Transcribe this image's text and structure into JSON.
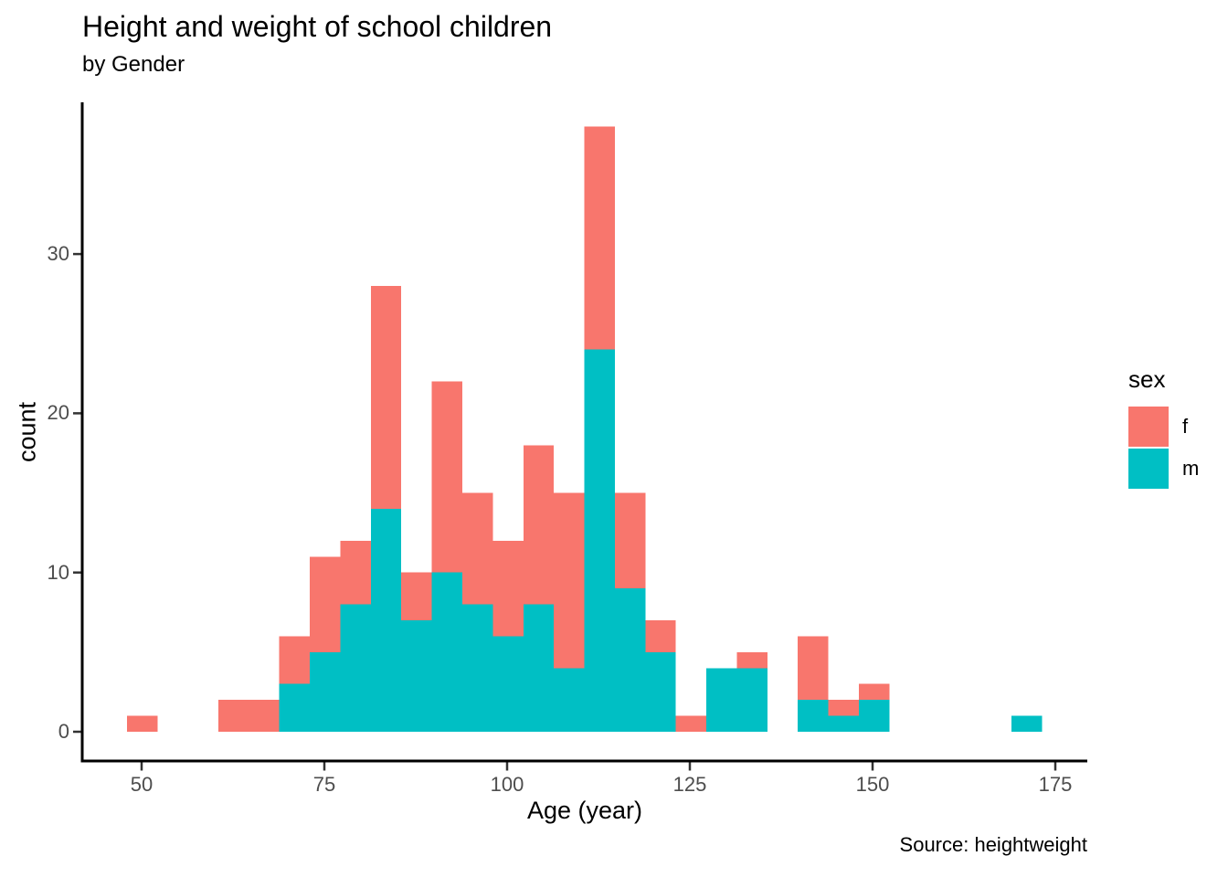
{
  "chart_data": {
    "type": "bar",
    "variant": "stacked-histogram",
    "title": "Height and weight of school children",
    "subtitle": "by Gender",
    "xlabel": "Age (year)",
    "ylabel": "count",
    "caption": "Source: heightweight",
    "grid": false,
    "axis_color": "#000000",
    "tick_label_color": "#4d4d4d",
    "legend": {
      "title": "sex",
      "position": "right",
      "entries": [
        {
          "label": "f",
          "color": "#F8766D"
        },
        {
          "label": "m",
          "color": "#00BFC4"
        }
      ]
    },
    "x_ticks": [
      50,
      75,
      100,
      125,
      150,
      175
    ],
    "y_ticks": [
      0,
      10,
      20,
      30
    ],
    "xlim": [
      42,
      179.4
    ],
    "ylim": [
      -1.9,
      39.9
    ],
    "binwidth": 4.17,
    "stack_order_bottom_to_top": [
      "m",
      "f"
    ],
    "bins": [
      {
        "x0": 47.98,
        "x1": 52.16,
        "f": 1,
        "m": 0
      },
      {
        "x0": 60.5,
        "x1": 64.67,
        "f": 2,
        "m": 0
      },
      {
        "x0": 64.67,
        "x1": 68.84,
        "f": 2,
        "m": 0
      },
      {
        "x0": 68.84,
        "x1": 73.02,
        "f": 3,
        "m": 3
      },
      {
        "x0": 73.02,
        "x1": 77.19,
        "f": 6,
        "m": 5
      },
      {
        "x0": 77.19,
        "x1": 81.36,
        "f": 4,
        "m": 8
      },
      {
        "x0": 81.36,
        "x1": 85.53,
        "f": 14,
        "m": 14
      },
      {
        "x0": 85.53,
        "x1": 89.71,
        "f": 3,
        "m": 7
      },
      {
        "x0": 89.71,
        "x1": 93.88,
        "f": 12,
        "m": 10
      },
      {
        "x0": 93.88,
        "x1": 98.05,
        "f": 7,
        "m": 8
      },
      {
        "x0": 98.05,
        "x1": 102.22,
        "f": 6,
        "m": 6
      },
      {
        "x0": 102.22,
        "x1": 106.4,
        "f": 10,
        "m": 8
      },
      {
        "x0": 106.4,
        "x1": 110.57,
        "f": 11,
        "m": 4
      },
      {
        "x0": 110.57,
        "x1": 114.74,
        "f": 14,
        "m": 24
      },
      {
        "x0": 114.74,
        "x1": 118.91,
        "f": 6,
        "m": 9
      },
      {
        "x0": 118.91,
        "x1": 123.09,
        "f": 2,
        "m": 5
      },
      {
        "x0": 123.09,
        "x1": 127.26,
        "f": 1,
        "m": 0
      },
      {
        "x0": 127.26,
        "x1": 131.43,
        "f": 0,
        "m": 4
      },
      {
        "x0": 131.43,
        "x1": 135.6,
        "f": 1,
        "m": 4
      },
      {
        "x0": 139.78,
        "x1": 143.95,
        "f": 4,
        "m": 2
      },
      {
        "x0": 143.95,
        "x1": 148.12,
        "f": 1,
        "m": 1
      },
      {
        "x0": 148.12,
        "x1": 152.29,
        "f": 1,
        "m": 2
      },
      {
        "x0": 168.98,
        "x1": 173.16,
        "f": 0,
        "m": 1
      }
    ],
    "totals": {
      "f": 111,
      "m": 125
    }
  }
}
